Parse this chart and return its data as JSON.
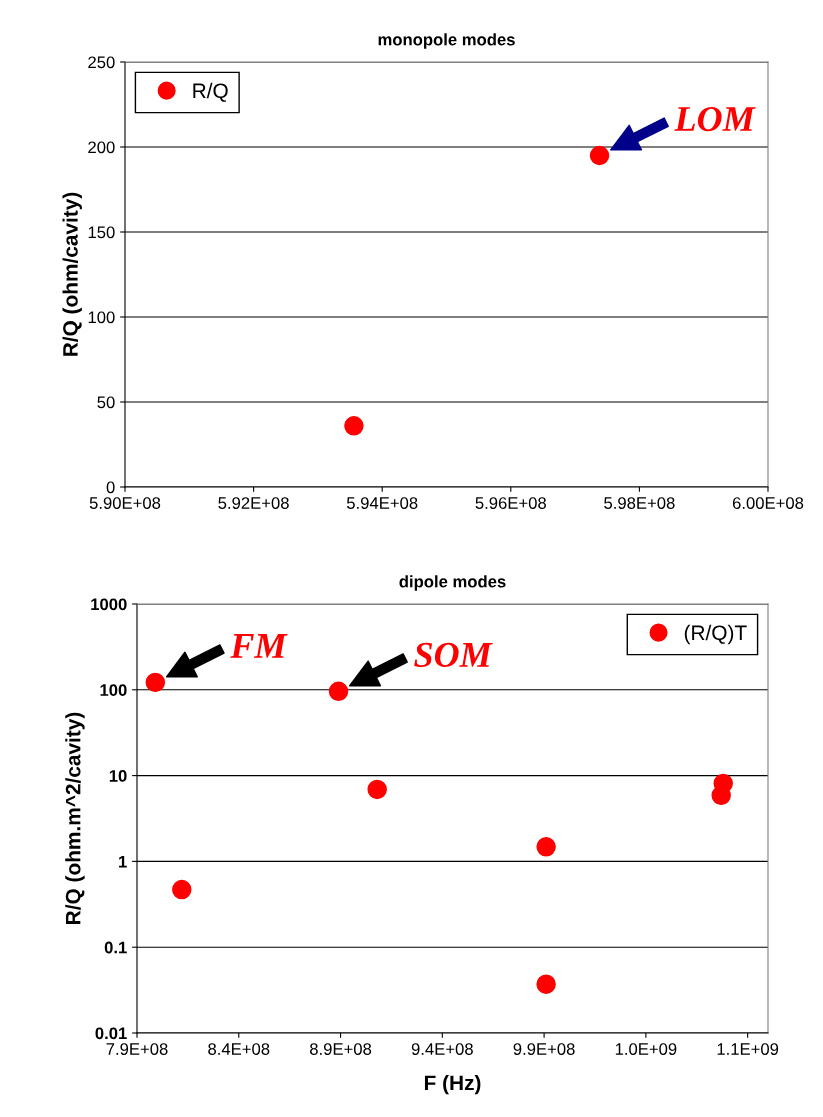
{
  "chart_data": [
    {
      "type": "scatter",
      "title": "monopole modes",
      "ylabel": "R/Q (ohm/cavity)",
      "series": [
        {
          "name": "R/Q",
          "color": "#ff0000",
          "x": [
            593560000.0,
            597380000.0
          ],
          "values": [
            36,
            195
          ]
        }
      ],
      "xlim": [
        590000000.0,
        600000000.0
      ],
      "xticks": [
        {
          "value": 590000000.0,
          "label": "5.90E+08"
        },
        {
          "value": 592000000.0,
          "label": "5.92E+08"
        },
        {
          "value": 594000000.0,
          "label": "5.94E+08"
        },
        {
          "value": 596000000.0,
          "label": "5.96E+08"
        },
        {
          "value": 598000000.0,
          "label": "5.98E+08"
        },
        {
          "value": 600000000.0,
          "label": "6.00E+08"
        }
      ],
      "ylim": [
        0,
        250
      ],
      "yticks": [
        0,
        50,
        100,
        150,
        200,
        250
      ],
      "annotations": [
        {
          "text": "LOM",
          "x": 597380000.0,
          "y": 195
        }
      ],
      "grid": "y",
      "legend": "top left",
      "marker": "circle"
    },
    {
      "type": "scatter",
      "title": "dipole modes",
      "xlabel": "F (Hz)",
      "ylabel": "R/Q (ohm.m^2/cavity)",
      "series": [
        {
          "name": "(R/Q)T",
          "color": "#ff0000",
          "x": [
            799000000.0,
            812000000.0,
            889000000.0,
            908000000.0,
            991000000.0,
            991000000.0,
            1077000000.0,
            1078000000.0
          ],
          "values": [
            122,
            0.47,
            96,
            6.9,
            1.48,
            0.037,
            5.9,
            8.1
          ]
        }
      ],
      "xlim": [
        790000000.0,
        1100000000.0
      ],
      "xticks": [
        {
          "value": 790000000.0,
          "label": "7.9E+08"
        },
        {
          "value": 840000000.0,
          "label": "8.4E+08"
        },
        {
          "value": 890000000.0,
          "label": "8.9E+08"
        },
        {
          "value": 940000000.0,
          "label": "9.4E+08"
        },
        {
          "value": 990000000.0,
          "label": "9.9E+08"
        },
        {
          "value": 1040000000.0,
          "label": "1.0E+09"
        },
        {
          "value": 1090000000.0,
          "label": "1.1E+09"
        }
      ],
      "ylim": [
        0.01,
        1000
      ],
      "yticks": [
        {
          "value": 0.01,
          "label": "0.01"
        },
        {
          "value": 0.1,
          "label": "0.1"
        },
        {
          "value": 1,
          "label": "1"
        },
        {
          "value": 10,
          "label": "10"
        },
        {
          "value": 100,
          "label": "100"
        },
        {
          "value": 1000,
          "label": "1000"
        }
      ],
      "log": "y",
      "annotations": [
        {
          "text": "FM",
          "x": 799000000.0,
          "y": 122
        },
        {
          "text": "SOM",
          "x": 889000000.0,
          "y": 96
        }
      ],
      "grid": "y",
      "legend": "top right",
      "marker": "circle"
    }
  ]
}
